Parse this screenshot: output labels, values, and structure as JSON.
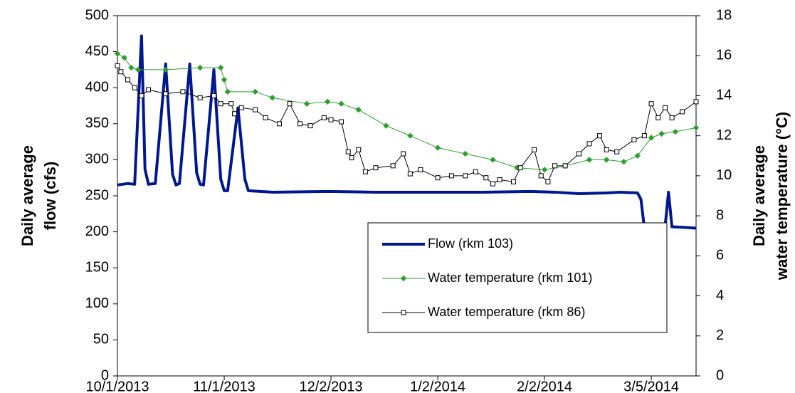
{
  "chart_data": {
    "type": "line",
    "ylabel": [
      "Daily average",
      "flow (cfs)"
    ],
    "y2label": [
      "Daily average",
      "water temperature (°C)"
    ],
    "xlim": [
      "10/1/2013",
      "3/18/2014"
    ],
    "xticks": [
      "10/1/2013",
      "11/1/2013",
      "12/2/2013",
      "1/2/2014",
      "2/2/2014",
      "3/5/2014"
    ],
    "ylim": [
      0,
      500
    ],
    "yticks": [
      0,
      50,
      100,
      150,
      200,
      250,
      300,
      350,
      400,
      450,
      500
    ],
    "y2lim": [
      0,
      18
    ],
    "y2ticks": [
      0,
      2,
      4,
      6,
      8,
      10,
      12,
      14,
      16,
      18
    ],
    "series": [
      {
        "name": "Flow (rkm 103)",
        "color": "#00188f",
        "axis": "y",
        "marker": "none",
        "x": [
          "10/1/2013",
          "10/4/2013",
          "10/6/2013",
          "10/8/2013",
          "10/9/2013",
          "10/10/2013",
          "10/12/2013",
          "10/15/2013",
          "10/17/2013",
          "10/18/2013",
          "10/19/2013",
          "10/22/2013",
          "10/24/2013",
          "10/25/2013",
          "10/26/2013",
          "10/29/2013",
          "10/31/2013",
          "11/1/2013",
          "11/2/2013",
          "11/5/2013",
          "11/7/2013",
          "11/8/2013",
          "11/15/2013",
          "12/1/2013",
          "12/15/2013",
          "1/1/2014",
          "1/15/2014",
          "1/29/2014",
          "2/5/2014",
          "2/12/2014",
          "2/20/2014",
          "2/24/2014",
          "3/1/2014",
          "3/2/2014",
          "3/3/2014",
          "3/9/2014",
          "3/10/2014",
          "3/11/2014",
          "3/15/2014",
          "3/18/2014"
        ],
        "values": [
          265,
          267,
          266,
          472,
          287,
          266,
          267,
          433,
          280,
          265,
          267,
          433,
          282,
          266,
          265,
          425,
          273,
          257,
          257,
          372,
          273,
          257,
          255,
          256,
          255,
          255,
          255,
          256,
          255,
          253,
          254,
          255,
          254,
          245,
          205,
          207,
          255,
          207,
          206,
          205
        ]
      },
      {
        "name": "Water temperature (rkm 101)",
        "color": "#2e9e2e",
        "axis": "y2",
        "marker": "diamond",
        "x": [
          "10/1/2013",
          "10/3/2013",
          "10/5/2013",
          "10/7/2013",
          "10/15/2013",
          "10/25/2013",
          "10/31/2013",
          "11/1/2013",
          "11/2/2013",
          "11/10/2013",
          "11/15/2013",
          "11/25/2013",
          "12/1/2013",
          "12/5/2013",
          "12/10/2013",
          "12/18/2013",
          "12/25/2013",
          "1/2/2014",
          "1/10/2014",
          "1/18/2014",
          "1/25/2014",
          "2/2/2014",
          "2/8/2014",
          "2/15/2014",
          "2/20/2014",
          "2/25/2014",
          "3/1/2014",
          "3/5/2014",
          "3/8/2014",
          "3/12/2014",
          "3/18/2014"
        ],
        "values": [
          16.1,
          15.9,
          15.4,
          15.3,
          15.3,
          15.4,
          15.4,
          14.8,
          14.2,
          14.2,
          13.9,
          13.6,
          13.7,
          13.6,
          13.3,
          12.5,
          12.0,
          11.4,
          11.1,
          10.8,
          10.4,
          10.3,
          10.5,
          10.8,
          10.8,
          10.7,
          11.0,
          11.9,
          12.1,
          12.2,
          12.4
        ]
      },
      {
        "name": "Water temperature (rkm 86)",
        "color": "#000000",
        "axis": "y2",
        "marker": "square",
        "x": [
          "10/1/2013",
          "10/2/2013",
          "10/4/2013",
          "10/6/2013",
          "10/8/2013",
          "10/10/2013",
          "10/15/2013",
          "10/20/2013",
          "10/25/2013",
          "10/29/2013",
          "10/31/2013",
          "11/3/2013",
          "11/4/2013",
          "11/6/2013",
          "11/10/2013",
          "11/13/2013",
          "11/17/2013",
          "11/20/2013",
          "11/23/2013",
          "11/26/2013",
          "11/30/2013",
          "12/2/2013",
          "12/5/2013",
          "12/7/2013",
          "12/8/2013",
          "12/10/2013",
          "12/12/2013",
          "12/15/2013",
          "12/20/2013",
          "12/23/2013",
          "12/25/2013",
          "12/28/2013",
          "1/2/2014",
          "1/6/2014",
          "1/10/2014",
          "1/13/2014",
          "1/16/2014",
          "1/18/2014",
          "1/20/2014",
          "1/24/2014",
          "1/26/2014",
          "1/30/2014",
          "2/1/2014",
          "2/3/2014",
          "2/5/2014",
          "2/8/2014",
          "2/12/2014",
          "2/15/2014",
          "2/18/2014",
          "2/20/2014",
          "2/23/2014",
          "2/28/2014",
          "3/3/2014",
          "3/5/2014",
          "3/7/2014",
          "3/9/2014",
          "3/11/2014",
          "3/14/2014",
          "3/18/2014"
        ],
        "values": [
          15.5,
          15.2,
          14.8,
          14.4,
          14.0,
          14.3,
          14.1,
          14.2,
          13.9,
          14.0,
          13.6,
          13.6,
          13.1,
          13.4,
          13.3,
          12.9,
          12.6,
          13.6,
          12.6,
          12.5,
          12.9,
          12.8,
          12.7,
          11.2,
          10.9,
          11.3,
          10.2,
          10.4,
          10.5,
          11.1,
          10.1,
          10.3,
          9.9,
          10.0,
          10.0,
          10.2,
          9.9,
          9.6,
          9.8,
          9.7,
          10.4,
          11.3,
          10.0,
          9.7,
          10.5,
          10.5,
          11.1,
          11.6,
          12.0,
          11.3,
          11.2,
          11.8,
          12.0,
          13.6,
          12.9,
          13.4,
          12.9,
          13.2,
          13.7
        ]
      }
    ]
  }
}
